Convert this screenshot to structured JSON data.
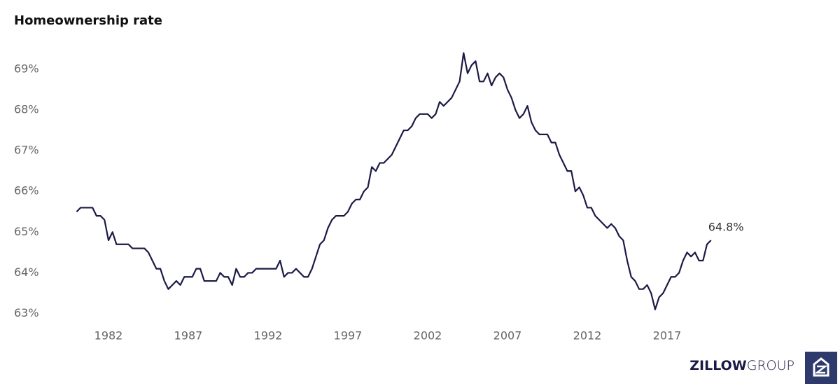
{
  "chart_data": {
    "type": "line",
    "title": "Homeownership rate",
    "color": "#1b1a45",
    "x": [
      1980,
      1980.25,
      1980.5,
      1980.75,
      1981,
      1981.25,
      1981.5,
      1981.75,
      1982,
      1982.25,
      1982.5,
      1982.75,
      1983,
      1983.25,
      1983.5,
      1983.75,
      1984,
      1984.25,
      1984.5,
      1984.75,
      1985,
      1985.25,
      1985.5,
      1985.75,
      1986,
      1986.25,
      1986.5,
      1986.75,
      1987,
      1987.25,
      1987.5,
      1987.75,
      1988,
      1988.25,
      1988.5,
      1988.75,
      1989,
      1989.25,
      1989.5,
      1989.75,
      1990,
      1990.25,
      1990.5,
      1990.75,
      1991,
      1991.25,
      1991.5,
      1991.75,
      1992,
      1992.25,
      1992.5,
      1992.75,
      1993,
      1993.25,
      1993.5,
      1993.75,
      1994,
      1994.25,
      1994.5,
      1994.75,
      1995,
      1995.25,
      1995.5,
      1995.75,
      1996,
      1996.25,
      1996.5,
      1996.75,
      1997,
      1997.25,
      1997.5,
      1997.75,
      1998,
      1998.25,
      1998.5,
      1998.75,
      1999,
      1999.25,
      1999.5,
      1999.75,
      2000,
      2000.25,
      2000.5,
      2000.75,
      2001,
      2001.25,
      2001.5,
      2001.75,
      2002,
      2002.25,
      2002.5,
      2002.75,
      2003,
      2003.25,
      2003.5,
      2003.75,
      2004,
      2004.25,
      2004.5,
      2004.75,
      2005,
      2005.25,
      2005.5,
      2005.75,
      2006,
      2006.25,
      2006.5,
      2006.75,
      2007,
      2007.25,
      2007.5,
      2007.75,
      2008,
      2008.25,
      2008.5,
      2008.75,
      2009,
      2009.25,
      2009.5,
      2009.75,
      2010,
      2010.25,
      2010.5,
      2010.75,
      2011,
      2011.25,
      2011.5,
      2011.75,
      2012,
      2012.25,
      2012.5,
      2012.75,
      2013,
      2013.25,
      2013.5,
      2013.75,
      2014,
      2014.25,
      2014.5,
      2014.75,
      2015,
      2015.25,
      2015.5,
      2015.75,
      2016,
      2016.25,
      2016.5,
      2016.75,
      2017,
      2017.25,
      2017.5,
      2017.75,
      2018,
      2018.25,
      2018.5,
      2018.75,
      2019,
      2019.25,
      2019.5,
      2019.75
    ],
    "values": [
      65.5,
      65.6,
      65.6,
      65.6,
      65.6,
      65.4,
      65.4,
      65.3,
      64.8,
      65.0,
      64.7,
      64.7,
      64.7,
      64.7,
      64.6,
      64.6,
      64.6,
      64.6,
      64.5,
      64.3,
      64.1,
      64.1,
      63.8,
      63.6,
      63.7,
      63.8,
      63.7,
      63.9,
      63.9,
      63.9,
      64.1,
      64.1,
      63.8,
      63.8,
      63.8,
      63.8,
      64.0,
      63.9,
      63.9,
      63.7,
      64.1,
      63.9,
      63.9,
      64.0,
      64.0,
      64.1,
      64.1,
      64.1,
      64.1,
      64.1,
      64.1,
      64.3,
      63.9,
      64.0,
      64.0,
      64.1,
      64.0,
      63.9,
      63.9,
      64.1,
      64.4,
      64.7,
      64.8,
      65.1,
      65.3,
      65.4,
      65.4,
      65.4,
      65.5,
      65.7,
      65.8,
      65.8,
      66.0,
      66.1,
      66.6,
      66.5,
      66.7,
      66.7,
      66.8,
      66.9,
      67.1,
      67.3,
      67.5,
      67.5,
      67.6,
      67.8,
      67.9,
      67.9,
      67.9,
      67.8,
      67.9,
      68.2,
      68.1,
      68.2,
      68.3,
      68.5,
      68.7,
      69.4,
      68.9,
      69.1,
      69.2,
      68.7,
      68.7,
      68.9,
      68.6,
      68.8,
      68.9,
      68.8,
      68.5,
      68.3,
      68.0,
      67.8,
      67.9,
      68.1,
      67.7,
      67.5,
      67.4,
      67.4,
      67.4,
      67.2,
      67.2,
      66.9,
      66.7,
      66.5,
      66.5,
      66.0,
      66.1,
      65.9,
      65.6,
      65.6,
      65.4,
      65.3,
      65.2,
      65.1,
      65.2,
      65.1,
      64.9,
      64.8,
      64.3,
      63.9,
      63.8,
      63.6,
      63.6,
      63.7,
      63.5,
      63.1,
      63.4,
      63.5,
      63.7,
      63.9,
      63.9,
      64.0,
      64.3,
      64.5,
      64.4,
      64.5,
      64.3,
      64.3,
      64.7,
      64.8
    ],
    "annotation": {
      "text": "64.8%",
      "x": 2019.75,
      "y": 64.8
    },
    "xlim": [
      1978,
      2021.5
    ],
    "xticks": [
      1982,
      1987,
      1992,
      1997,
      2002,
      2007,
      2012,
      2017
    ],
    "ylim": [
      62.7,
      69.6
    ],
    "yticks": [
      {
        "value": 63,
        "label": "63%"
      },
      {
        "value": 64,
        "label": "64%"
      },
      {
        "value": 65,
        "label": "65%"
      },
      {
        "value": 66,
        "label": "66%"
      },
      {
        "value": 67,
        "label": "67%"
      },
      {
        "value": 68,
        "label": "68%"
      },
      {
        "value": 69,
        "label": "69%"
      }
    ],
    "grid": false
  },
  "logo": {
    "brand": "ZILLOW",
    "suffix": "GROUP"
  }
}
